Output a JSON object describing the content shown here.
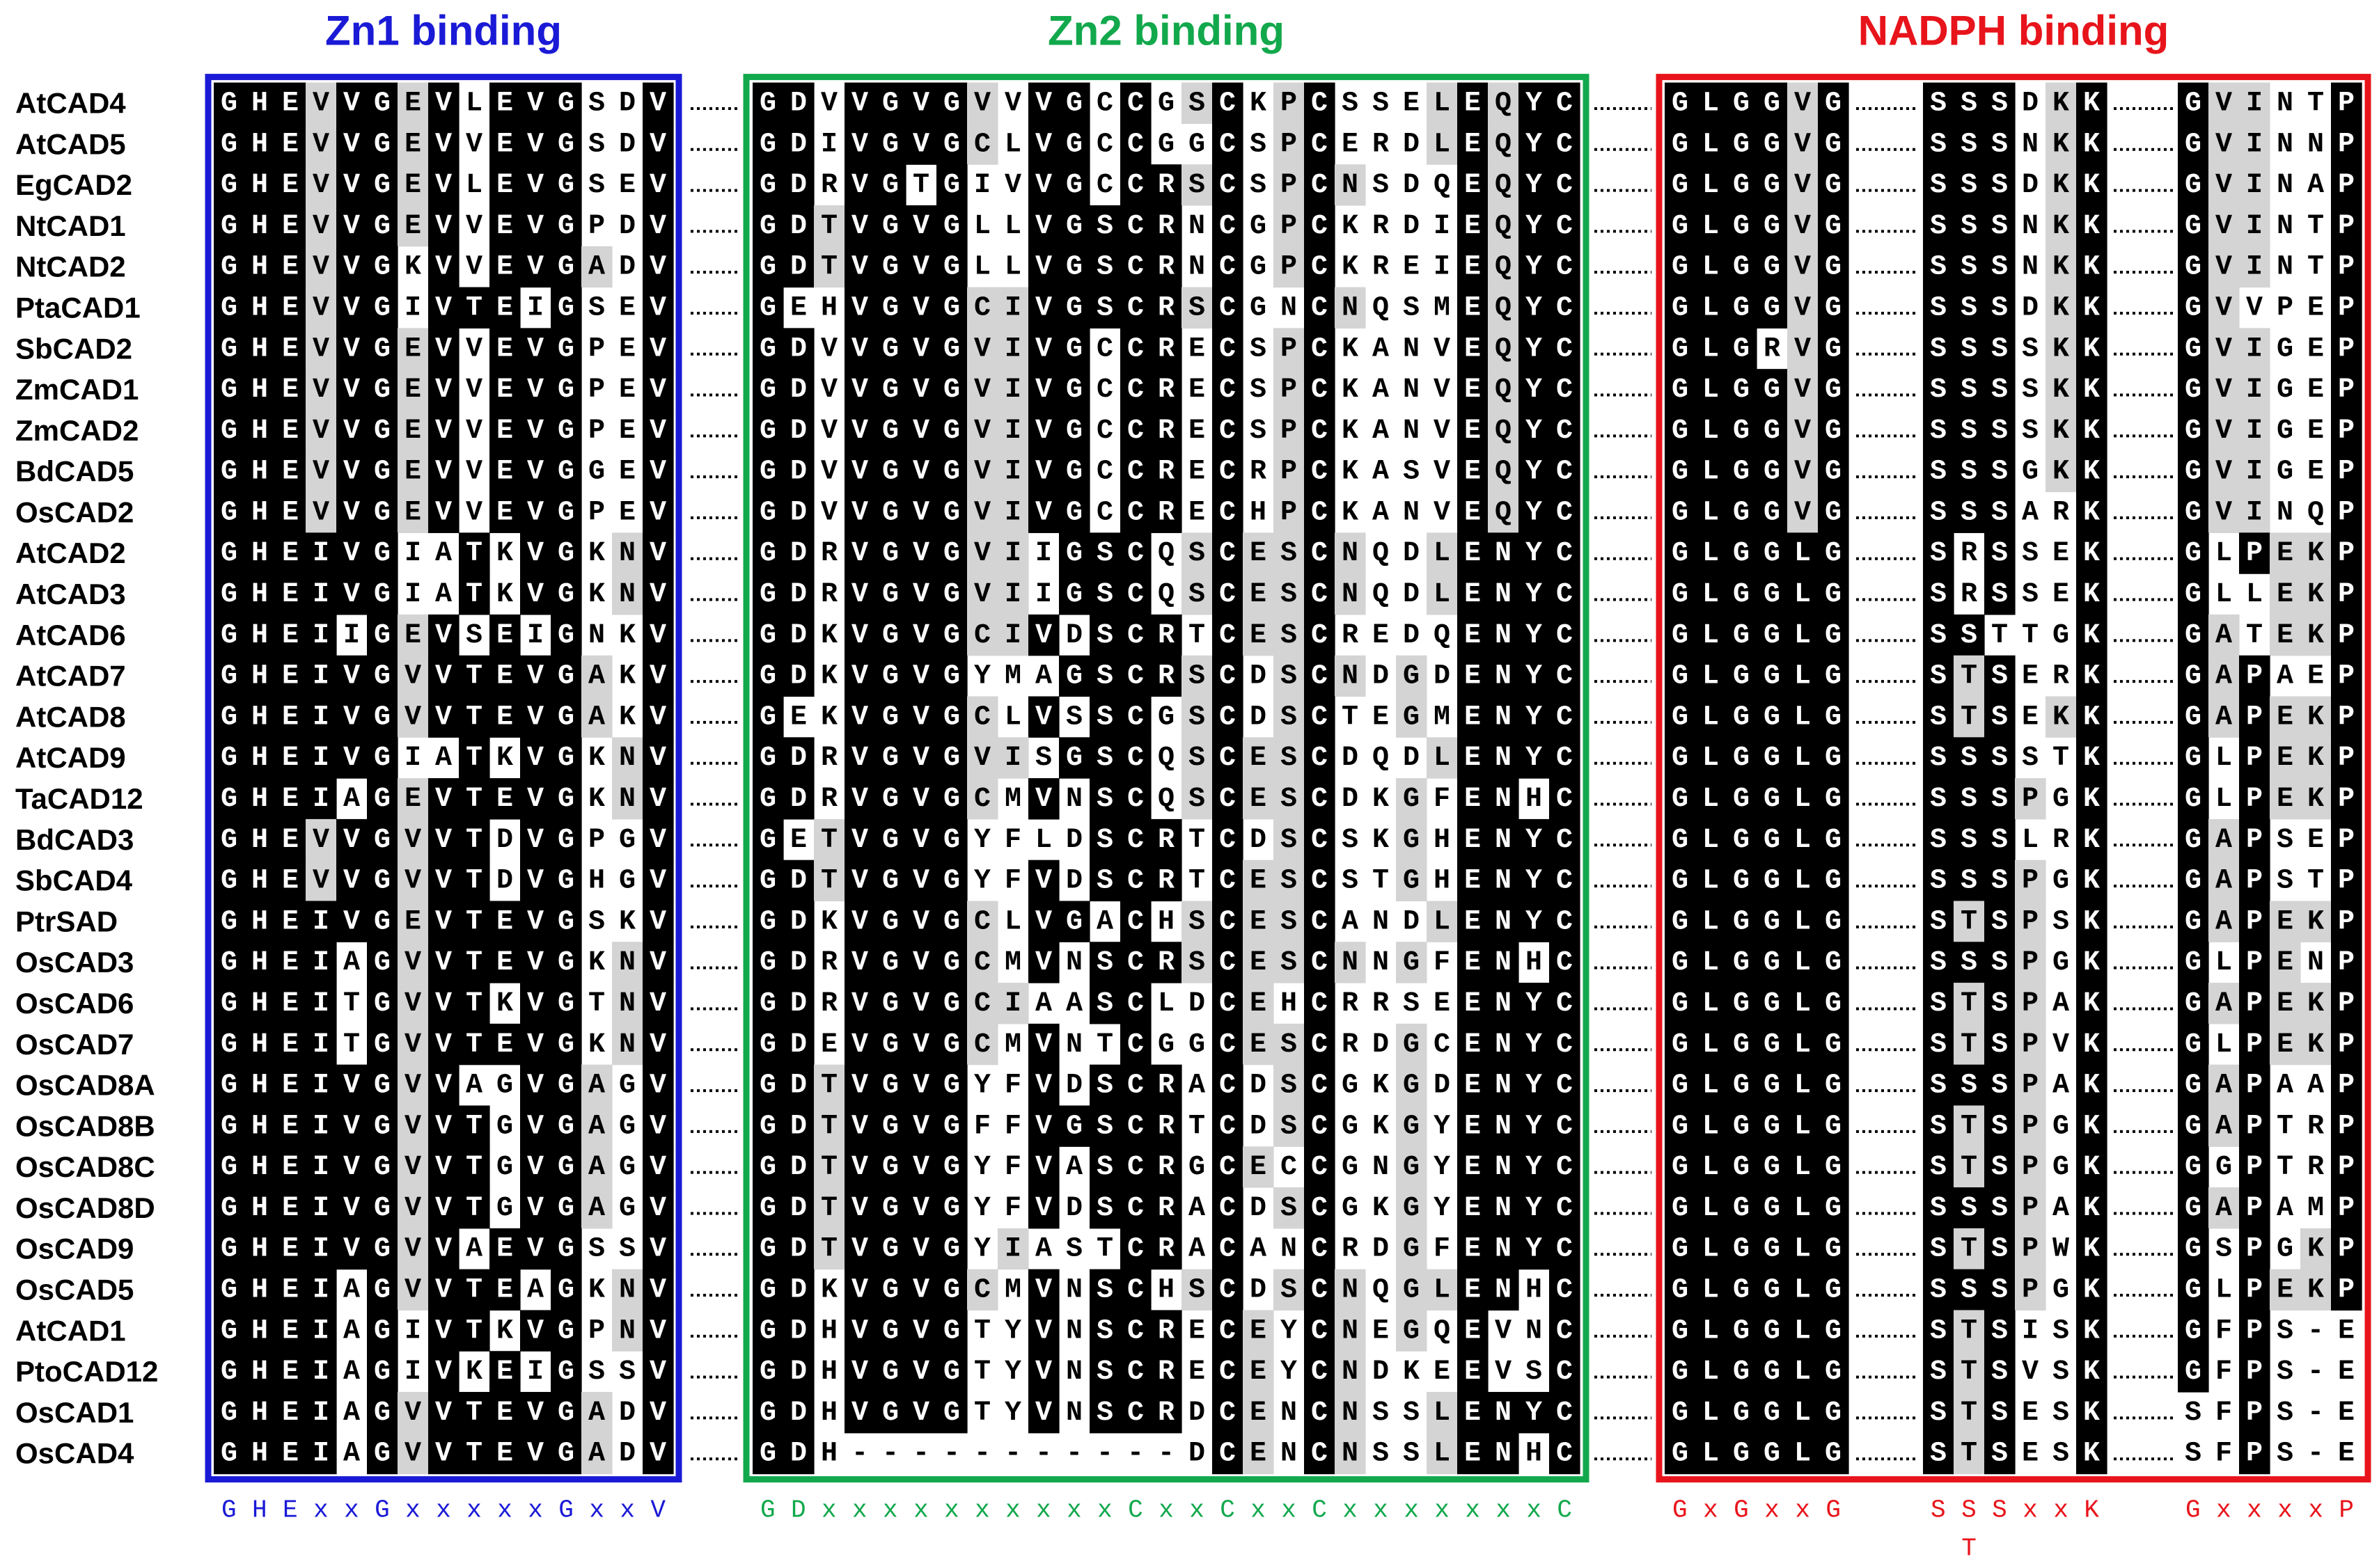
{
  "sections": [
    {
      "title": "Zn1 binding",
      "color": "#1a1ad6",
      "motifs": [
        [
          "GHExxGxxxxxGxxV"
        ]
      ]
    },
    {
      "title": "Zn2 binding",
      "color": "#12a84c",
      "motifs": [
        [
          "GDxxxxxxxxxxCxxCxxCxxxxxxxC"
        ]
      ]
    },
    {
      "title": "NADPH binding",
      "color": "#e8141b",
      "motifs": [
        [
          "GxGxxG"
        ],
        [
          "SSSxxK",
          "T"
        ],
        [
          "GxxxxP"
        ]
      ]
    }
  ],
  "sequences": [
    {
      "name": "AtCAD4",
      "segments": [
        "GHEVVGEVLEVGSDV",
        "GDVVGVGVVVGCCGSCKPCSSELEQYC",
        "GLGGVG",
        "SSSDKK",
        "GVINTP"
      ]
    },
    {
      "name": "AtCAD5",
      "segments": [
        "GHEVVGEVVEVGSDV",
        "GDIVGVGCLVGCCGGCSPCERDLEQYC",
        "GLGGVG",
        "SSSNKK",
        "GVINNP"
      ]
    },
    {
      "name": "EgCAD2",
      "segments": [
        "GHEVVGEVLEVGSEV",
        "GDRVGTGIVVGCCRSCSPCNSDQEQYC",
        "GLGGVG",
        "SSSDKK",
        "GVINAP"
      ]
    },
    {
      "name": "NtCAD1",
      "segments": [
        "GHEVVGEVVEVGPDV",
        "GDTVGVGLLVGSCRNCGPCKRDIEQYC",
        "GLGGVG",
        "SSSNKK",
        "GVINTP"
      ]
    },
    {
      "name": "NtCAD2",
      "segments": [
        "GHEVVGKVVEVGADV",
        "GDTVGVGLLVGSCRNCGPCKREIEQYC",
        "GLGGVG",
        "SSSNKK",
        "GVINTP"
      ]
    },
    {
      "name": "PtaCAD1",
      "segments": [
        "GHEVVGIVTEIGSEV",
        "GEHVGVGCIVGSCRSCGNCNQSMEQYC",
        "GLGGVG",
        "SSSDKK",
        "GVVPEP"
      ]
    },
    {
      "name": "SbCAD2",
      "segments": [
        "GHEVVGEVVEVGPEV",
        "GDVVGVGVIVGCCRECSPCKANVEQYC",
        "GLGRVG",
        "SSSSKK",
        "GVIGEP"
      ]
    },
    {
      "name": "ZmCAD1",
      "segments": [
        "GHEVVGEVVEVGPEV",
        "GDVVGVGVIVGCCRECSPCKANVEQYC",
        "GLGGVG",
        "SSSSKK",
        "GVIGEP"
      ]
    },
    {
      "name": "ZmCAD2",
      "segments": [
        "GHEVVGEVVEVGPEV",
        "GDVVGVGVIVGCCRECSPCKANVEQYC",
        "GLGGVG",
        "SSSSKK",
        "GVIGEP"
      ]
    },
    {
      "name": "BdCAD5",
      "segments": [
        "GHEVVGEVVEVGGEV",
        "GDVVGVGVIVGCCRECRPCKASVEQYC",
        "GLGGVG",
        "SSSGKK",
        "GVIGEP"
      ]
    },
    {
      "name": "OsCAD2",
      "segments": [
        "GHEVVGEVVEVGPEV",
        "GDVVGVGVIVGCCRECHPCKANVEQYC",
        "GLGGVG",
        "SSSARK",
        "GVINQP"
      ]
    },
    {
      "name": "AtCAD2",
      "segments": [
        "GHEIVGIATKVGKNV",
        "GDRVGVGVIIGSCQSCESCNQDLENYC",
        "GLGGLG",
        "SRSSEK",
        "GLPEKP"
      ]
    },
    {
      "name": "AtCAD3",
      "segments": [
        "GHEIVGIATKVGKNV",
        "GDRVGVGVIIGSCQSCESCNQDLENYC",
        "GLGGLG",
        "SRSSEK",
        "GLLEKP"
      ]
    },
    {
      "name": "AtCAD6",
      "segments": [
        "GHEIIGEVSEIGNKV",
        "GDKVGVGCIVDSCRTCESCREDQENYC",
        "GLGGLG",
        "SSTTGK",
        "GATEKP"
      ]
    },
    {
      "name": "AtCAD7",
      "segments": [
        "GHEIVGVVTEVGAKV",
        "GDKVGVGYMAGSCRSCDSCNDGDENYC",
        "GLGGLG",
        "STSERK",
        "GAPAEP"
      ]
    },
    {
      "name": "AtCAD8",
      "segments": [
        "GHEIVGVVTEVGAKV",
        "GEKVGVGCLVSSCGSCDSCTEGMENYC",
        "GLGGLG",
        "STSEKK",
        "GAPEKP"
      ]
    },
    {
      "name": "AtCAD9",
      "segments": [
        "GHEIVGIATKVGKNV",
        "GDRVGVGVISGSCQSCESCDQDLENYC",
        "GLGGLG",
        "SSSSTK",
        "GLPEKP"
      ]
    },
    {
      "name": "TaCAD12",
      "segments": [
        "GHEIAGEVTEVGKNV",
        "GDRVGVGCMVNSCQSCESCDKGFENHC",
        "GLGGLG",
        "SSSPGK",
        "GLPEKP"
      ]
    },
    {
      "name": "BdCAD3",
      "segments": [
        "GHEVVGVVTDVGPGV",
        "GETVGVGYFLDSCRTCDSCSKGHENYC",
        "GLGGLG",
        "SSSLRK",
        "GAPSEP"
      ]
    },
    {
      "name": "SbCAD4",
      "segments": [
        "GHEVVGVVTDVGHGV",
        "GDTVGVGYFVDSCRTCESCSTGHENYC",
        "GLGGLG",
        "SSSPGK",
        "GAPSTP"
      ]
    },
    {
      "name": "PtrSAD",
      "segments": [
        "GHEIVGEVTEVGSKV",
        "GDKVGVGCLVGACHSCESCANDLENYC",
        "GLGGLG",
        "STSPSK",
        "GAPEKP"
      ]
    },
    {
      "name": "OsCAD3",
      "segments": [
        "GHEIAGVVTEVGKNV",
        "GDRVGVGCMVNSCRSCESCNNGFENHC",
        "GLGGLG",
        "SSSPGK",
        "GLPENP"
      ]
    },
    {
      "name": "OsCAD6",
      "segments": [
        "GHEITGVVTKVGTNV",
        "GDRVGVGCIAASCLDCEHCRRSEENYC",
        "GLGGLG",
        "STSPAK",
        "GAPEKP"
      ]
    },
    {
      "name": "OsCAD7",
      "segments": [
        "GHEITGVVTEVGKNV",
        "GDEVGVGCMVNTCGGCESCRDGCENYC",
        "GLGGLG",
        "STSPVK",
        "GLPEKP"
      ]
    },
    {
      "name": "OsCAD8A",
      "segments": [
        "GHEIVGVVAGVGAGV",
        "GDTVGVGYFVDSCRACDSCGKGDENYC",
        "GLGGLG",
        "SSSPAK",
        "GAPAAP"
      ]
    },
    {
      "name": "OsCAD8B",
      "segments": [
        "GHEIVGVVTGVGAGV",
        "GDTVGVGFFVGSCRTCDSCGKGYENYC",
        "GLGGLG",
        "STSPGK",
        "GAPTRP"
      ]
    },
    {
      "name": "OsCAD8C",
      "segments": [
        "GHEIVGVVTGVGAGV",
        "GDTVGVGYFVASCRGCECCGNGYENYC",
        "GLGGLG",
        "STSPGK",
        "GGPTRP"
      ]
    },
    {
      "name": "OsCAD8D",
      "segments": [
        "GHEIVGVVTGVGAGV",
        "GDTVGVGYFVDSCRACDSCGKGYENYC",
        "GLGGLG",
        "SSSPAK",
        "GAPAMP"
      ]
    },
    {
      "name": "OsCAD9",
      "segments": [
        "GHEIVGVVAEVGSSV",
        "GDTVGVGYIASTCRACANCRDGFENYC",
        "GLGGLG",
        "STSPWK",
        "GSPGKP"
      ]
    },
    {
      "name": "OsCAD5",
      "segments": [
        "GHEIAGVVTEAGKNV",
        "GDKVGVGCMVNSCHSCDSCNQGLENHC",
        "GLGGLG",
        "SSSPGK",
        "GLPEKP"
      ]
    },
    {
      "name": "AtCAD1",
      "segments": [
        "GHEIAGIVTKVGPNV",
        "GDHVGVGTYVNSCRECEYCNEGQEVNC",
        "GLGGLG",
        "STSISK",
        "GFPS-E"
      ]
    },
    {
      "name": "PtoCAD12",
      "segments": [
        "GHEIAGIVKEIGSSV",
        "GDHVGVGTYVNSCRECEYCNDKEEVSC",
        "GLGGLG",
        "STSVSK",
        "GFPS-E"
      ]
    },
    {
      "name": "OsCAD1",
      "segments": [
        "GHEIAGVVTEVGADV",
        "GDHVGVGTYVNSCRDCENCNSSLENYC",
        "GLGGLG",
        "STSESK",
        "SFPS-E"
      ]
    },
    {
      "name": "OsCAD4",
      "segments": [
        "GHEIAGVVTEVGADV",
        "GDH-----------DCENCNSSLENHC",
        "GLGGLG",
        "STSESK",
        "SFPS-E"
      ]
    }
  ]
}
